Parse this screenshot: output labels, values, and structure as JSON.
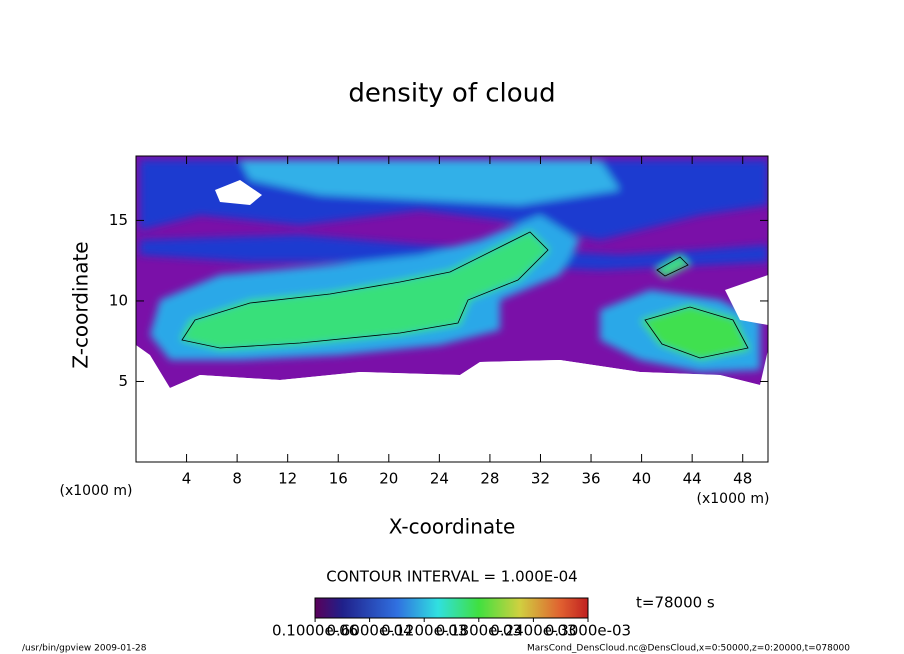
{
  "chart_data": {
    "type": "contour",
    "title": "density of cloud",
    "x_label": "X-coordinate",
    "y_label": "Z-coordinate",
    "x_unit": "(x1000 m)",
    "y_unit": "(x1000 m)",
    "xlim": [
      0,
      50
    ],
    "xticks": [
      4,
      8,
      12,
      16,
      20,
      24,
      28,
      32,
      36,
      40,
      44,
      48
    ],
    "ylim": [
      0,
      19
    ],
    "yticks": [
      5,
      10,
      15
    ],
    "contour_interval": "CONTOUR INTERVAL = 1.000E-04",
    "time": "t=78000 s",
    "colorbar": {
      "lim": [
        0,
        0.0003
      ],
      "ticks": [
        {
          "value": 1e-07,
          "label": "0.1000e-06"
        },
        {
          "value": 6e-05,
          "label": "0.6000e-04"
        },
        {
          "value": 0.00012,
          "label": "0.1200e-03"
        },
        {
          "value": 0.00018,
          "label": "0.1800e-03"
        },
        {
          "value": 0.00024,
          "label": "0.2400e-03"
        },
        {
          "value": 0.0003,
          "label": "0.3000e-03"
        }
      ]
    },
    "footer_left": "/usr/bin/gpview  2009-01-28",
    "footer_right": "MarsCond_DensCloud.nc@DensCloud,x=0:50000,z=0:20000,t=078000"
  }
}
